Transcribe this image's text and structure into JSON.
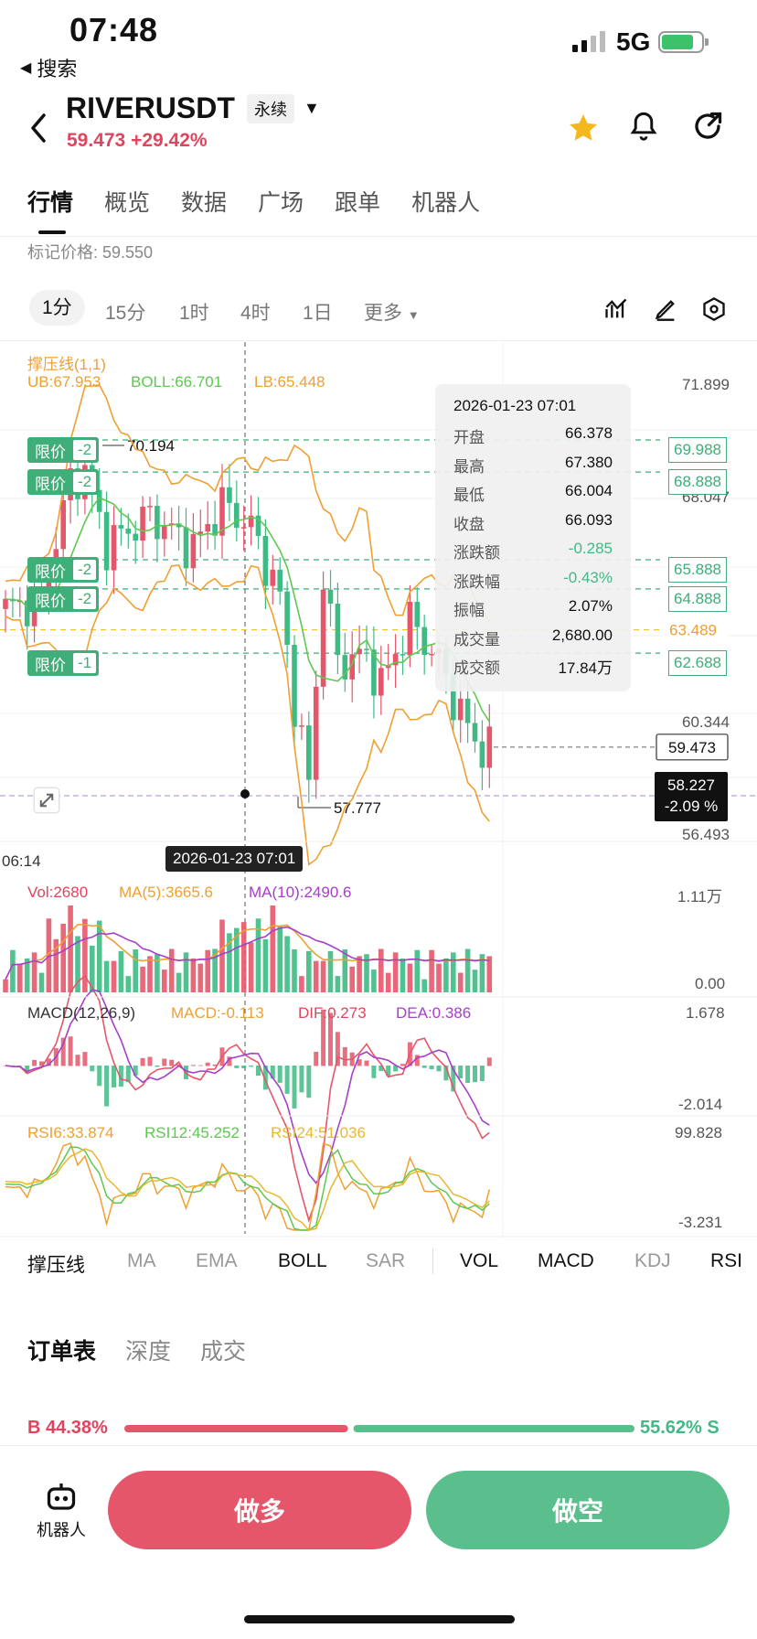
{
  "status": {
    "time": "07:48",
    "back_app": "搜索",
    "network": "5G"
  },
  "header": {
    "symbol": "RIVERUSDT",
    "contract_type": "永续",
    "last_price": "59.473",
    "change_pct": "+29.42%"
  },
  "tabs": [
    "行情",
    "概览",
    "数据",
    "广场",
    "跟单",
    "机器人"
  ],
  "mark_price": "标记价格: 59.550",
  "intervals": {
    "items": [
      "1分",
      "15分",
      "1时",
      "4时",
      "1日"
    ],
    "more": "更多",
    "active": "1分"
  },
  "chart": {
    "indicator_name": "撑压线(1,1)",
    "ub": "UB:67.953",
    "boll": "BOLL:66.701",
    "lb": "LB:65.448",
    "price_axis": [
      "71.899",
      "68.047",
      "60.344",
      "56.493"
    ],
    "high_marker": "70.194",
    "low_marker": "57.777",
    "left_time": "06:14",
    "crosshair_time": "2026-01-23 07:01",
    "current_price_tag": "59.473",
    "cursor_price": "58.227",
    "cursor_pct": "-2.09 %",
    "yellow_level": "63.489",
    "limit_orders": [
      {
        "label": "限价",
        "count": "-2",
        "price": "69.988"
      },
      {
        "label": "限价",
        "count": "-2",
        "price": "68.888"
      },
      {
        "label": "限价",
        "count": "-2",
        "price": "65.888"
      },
      {
        "label": "限价",
        "count": "-2",
        "price": "64.888"
      },
      {
        "label": "限价",
        "count": "-1",
        "price": "62.688"
      }
    ]
  },
  "tooltip": {
    "datetime": "2026-01-23 07:01",
    "rows": [
      {
        "k": "开盘",
        "v": "66.378"
      },
      {
        "k": "最高",
        "v": "67.380"
      },
      {
        "k": "最低",
        "v": "66.004"
      },
      {
        "k": "收盘",
        "v": "66.093"
      },
      {
        "k": "涨跌额",
        "v": "-0.285"
      },
      {
        "k": "涨跌幅",
        "v": "-0.43%"
      },
      {
        "k": "振幅",
        "v": "2.07%"
      },
      {
        "k": "成交量",
        "v": "2,680.00"
      },
      {
        "k": "成交额",
        "v": "17.84万"
      }
    ]
  },
  "volume": {
    "vol": "Vol:2680",
    "ma5": "MA(5):3665.6",
    "ma10": "MA(10):2490.6",
    "max": "1.11万",
    "min": "0.00"
  },
  "macd": {
    "title": "MACD(12,26,9)",
    "macd": "MACD:-0.113",
    "dif": "DIF:0.273",
    "dea": "DEA:0.386",
    "max": "1.678",
    "min": "-2.014"
  },
  "rsi": {
    "rsi6": "RSI6:33.874",
    "rsi12": "RSI12:45.252",
    "rsi24": "RSI24:51.036",
    "max": "99.828",
    "min": "-3.231"
  },
  "indicator_tabs": [
    "撑压线",
    "MA",
    "EMA",
    "BOLL",
    "SAR",
    "VOL",
    "MACD",
    "KDJ",
    "RSI"
  ],
  "orderbook": {
    "tabs": [
      "订单表",
      "深度",
      "成交"
    ],
    "buy_ratio": "B 44.38%",
    "sell_ratio": "55.62% S",
    "buy_fraction": 0.4438
  },
  "bottom": {
    "robot": "机器人",
    "long": "做多",
    "short": "做空"
  },
  "colors": {
    "up": "#e5566a",
    "down": "#3fba84",
    "accent_orange": "#f0a030"
  }
}
